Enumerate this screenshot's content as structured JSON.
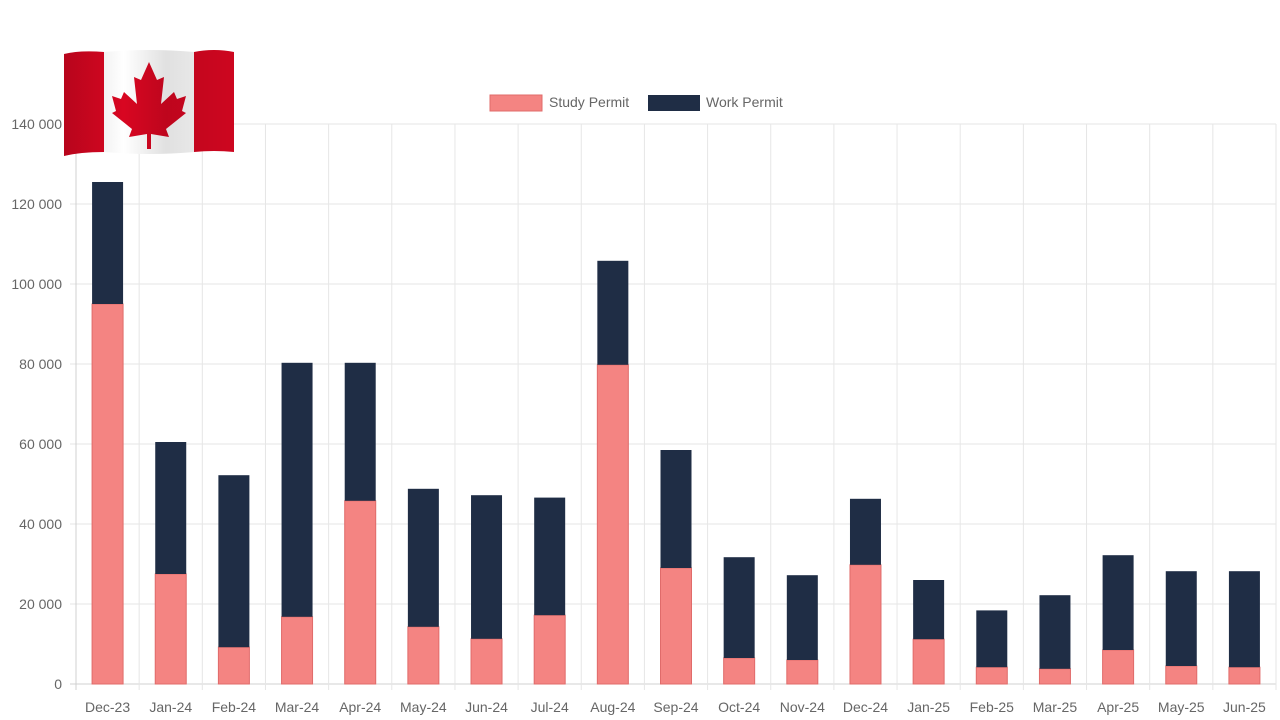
{
  "colors": {
    "study_permit": "#f48482",
    "study_permit_border": "#e06b6a",
    "work_permit": "#1f2d45",
    "grid": "#e6e6e6",
    "tick_text": "#666666",
    "flag_red": "#d80621",
    "flag_white": "#ffffff"
  },
  "logo": {
    "icon": "canada-flag-icon"
  },
  "chart_data": {
    "type": "bar",
    "stacked": true,
    "categories": [
      "Dec-23",
      "Jan-24",
      "Feb-24",
      "Mar-24",
      "Apr-24",
      "May-24",
      "Jun-24",
      "Jul-24",
      "Aug-24",
      "Sep-24",
      "Oct-24",
      "Nov-24",
      "Dec-24",
      "Jan-25",
      "Feb-25",
      "Mar-25",
      "Apr-25",
      "May-25",
      "Jun-25"
    ],
    "series": [
      {
        "name": "Study Permit",
        "color": "#f48482",
        "values": [
          95000,
          27500,
          9200,
          16800,
          45800,
          14300,
          11300,
          17200,
          79800,
          29000,
          6500,
          6000,
          29800,
          11200,
          4200,
          3800,
          8500,
          4500,
          4200
        ]
      },
      {
        "name": "Work Permit",
        "color": "#1f2d45",
        "values": [
          30500,
          33000,
          43000,
          63500,
          34500,
          34500,
          35900,
          29400,
          26000,
          29500,
          25200,
          21200,
          16500,
          14800,
          14200,
          18400,
          23700,
          23700,
          24000
        ]
      }
    ],
    "ylim": [
      0,
      140000
    ],
    "yticks": [
      0,
      20000,
      40000,
      60000,
      80000,
      100000,
      120000,
      140000
    ],
    "ytick_labels": [
      "0",
      "20 000",
      "40 000",
      "60 000",
      "80 000",
      "100 000",
      "120 000",
      "140 000"
    ],
    "grid": true,
    "legend_position": "top-center"
  }
}
